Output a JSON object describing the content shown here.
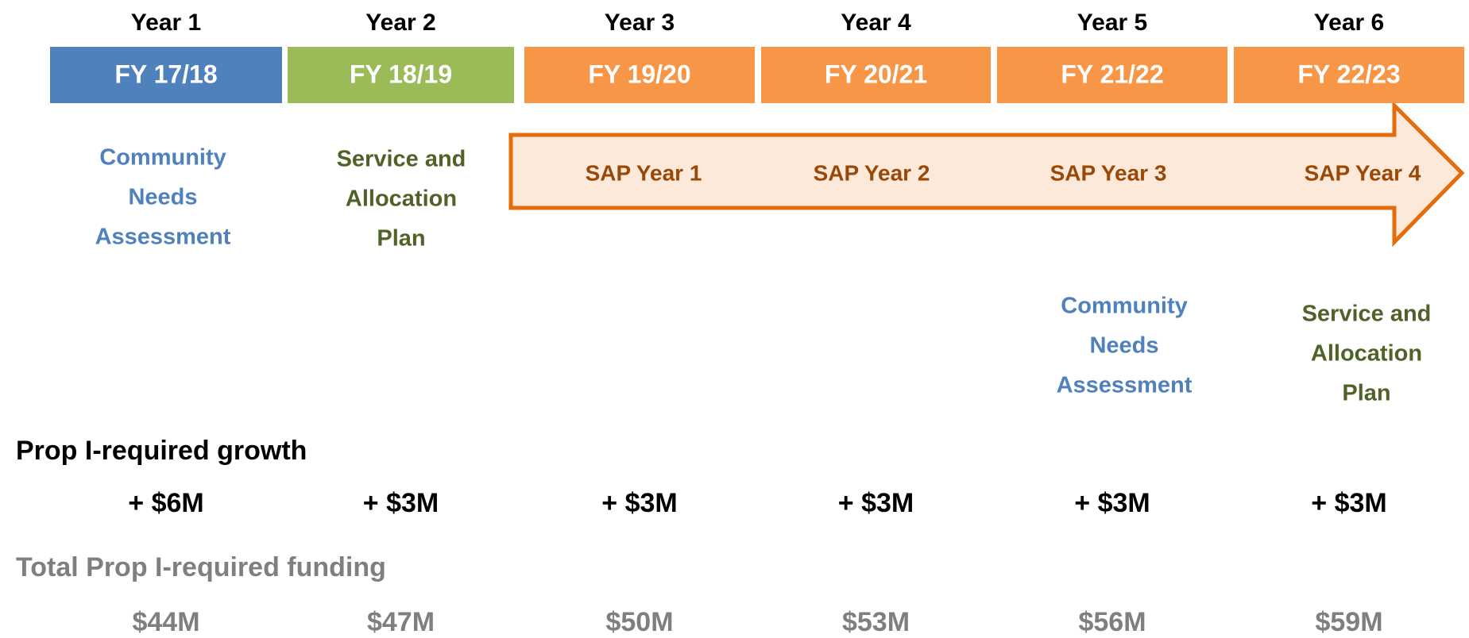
{
  "columns": [
    {
      "year": "Year 1",
      "fiscal_year": "FY 17/18",
      "growth": "+ $6M",
      "total": "$44M"
    },
    {
      "year": "Year 2",
      "fiscal_year": "FY 18/19",
      "growth": "+ $3M",
      "total": "$47M"
    },
    {
      "year": "Year 3",
      "fiscal_year": "FY 19/20",
      "growth": "+ $3M",
      "total": "$50M"
    },
    {
      "year": "Year 4",
      "fiscal_year": "FY 20/21",
      "growth": "+ $3M",
      "total": "$53M"
    },
    {
      "year": "Year 5",
      "fiscal_year": "FY 21/22",
      "growth": "+ $3M",
      "total": "$56M"
    },
    {
      "year": "Year 6",
      "fiscal_year": "FY 22/23",
      "growth": "+ $3M",
      "total": "$59M"
    }
  ],
  "sap_years": [
    "SAP Year 1",
    "SAP Year 2",
    "SAP Year 3",
    "SAP Year 4"
  ],
  "phases": [
    {
      "lines": [
        "Community",
        "Needs",
        "Assessment"
      ]
    },
    {
      "lines": [
        "Service and",
        "Allocation",
        "Plan"
      ]
    },
    {
      "lines": [
        "Community",
        "Needs",
        "Assessment"
      ]
    },
    {
      "lines": [
        "Service and",
        "Allocation",
        "Plan"
      ]
    }
  ],
  "growth_heading": "Prop I-required growth",
  "total_heading": "Total Prop I-required funding"
}
